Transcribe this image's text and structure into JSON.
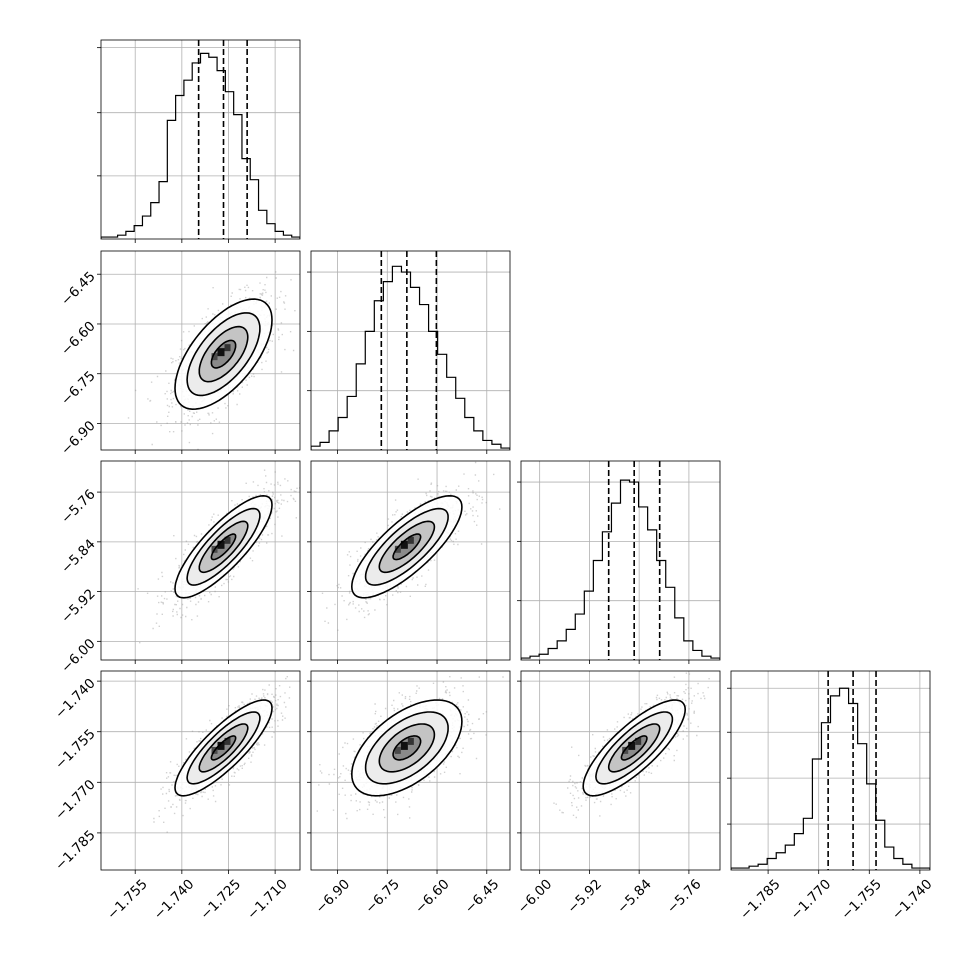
{
  "chart_data": {
    "type": "corner",
    "title": "",
    "parameters": [
      {
        "index": 0,
        "axis_label": "",
        "range": [
          -1.766,
          -1.702
        ],
        "ticks": [
          -1.755,
          -1.74,
          -1.725,
          -1.71
        ],
        "tick_labels": [
          "−1.755",
          "−1.740",
          "−1.725",
          "−1.710"
        ],
        "quantiles": {
          "q16": -1.7346,
          "q50": -1.7266,
          "q84": -1.719
        },
        "histogram": [
          0.01,
          0.01,
          0.02,
          0.04,
          0.07,
          0.12,
          0.19,
          0.3,
          0.62,
          0.75,
          0.83,
          0.92,
          0.97,
          0.95,
          0.88,
          0.77,
          0.65,
          0.42,
          0.31,
          0.15,
          0.08,
          0.04,
          0.02,
          0.01
        ],
        "hist_ticks": [
          0.33,
          0.66,
          1.0
        ]
      },
      {
        "index": 1,
        "axis_label": "",
        "range": [
          -6.98,
          -6.38
        ],
        "ticks": [
          -6.9,
          -6.75,
          -6.6,
          -6.45
        ],
        "tick_labels": [
          "−6.90",
          "−6.75",
          "−6.60",
          "−6.45"
        ],
        "quantiles": {
          "q16": -6.768,
          "q50": -6.691,
          "q84": -6.602
        },
        "histogram": [
          0.02,
          0.04,
          0.1,
          0.17,
          0.28,
          0.45,
          0.62,
          0.78,
          0.88,
          0.96,
          0.93,
          0.85,
          0.76,
          0.62,
          0.5,
          0.38,
          0.27,
          0.17,
          0.1,
          0.05,
          0.03,
          0.01
        ],
        "hist_ticks": [
          0.31,
          0.62,
          0.93
        ]
      },
      {
        "index": 2,
        "axis_label": "",
        "range": [
          -6.03,
          -5.71
        ],
        "ticks": [
          -6.0,
          -5.92,
          -5.84,
          -5.76
        ],
        "tick_labels": [
          "−6.00",
          "−5.92",
          "−5.84",
          "−5.76"
        ],
        "quantiles": {
          "q16": -5.889,
          "q50": -5.848,
          "q84": -5.807
        },
        "histogram": [
          0.01,
          0.02,
          0.03,
          0.06,
          0.1,
          0.16,
          0.24,
          0.36,
          0.52,
          0.67,
          0.82,
          0.94,
          0.93,
          0.8,
          0.68,
          0.52,
          0.38,
          0.22,
          0.1,
          0.05,
          0.02,
          0.01
        ],
        "hist_ticks": [
          0.31,
          0.62,
          0.93
        ]
      },
      {
        "index": 3,
        "axis_label": "",
        "range": [
          -1.796,
          -1.737
        ],
        "ticks": [
          -1.785,
          -1.77,
          -1.755,
          -1.74
        ],
        "tick_labels": [
          "−1.785",
          "−1.770",
          "−1.755",
          "−1.740"
        ],
        "quantiles": {
          "q16": -1.7672,
          "q50": -1.7598,
          "q84": -1.753
        },
        "histogram": [
          0.01,
          0.01,
          0.02,
          0.03,
          0.06,
          0.09,
          0.13,
          0.19,
          0.27,
          0.58,
          0.77,
          0.91,
          0.95,
          0.87,
          0.66,
          0.45,
          0.26,
          0.12,
          0.06,
          0.03,
          0.01,
          0.01
        ],
        "hist_ticks": [
          0.24,
          0.48,
          0.72,
          0.95
        ]
      }
    ],
    "correlations": [
      [
        1.0,
        0.62,
        0.82,
        0.83
      ],
      [
        0.62,
        1.0,
        0.78,
        0.55
      ],
      [
        0.82,
        0.78,
        1.0,
        0.8
      ],
      [
        0.83,
        0.55,
        0.8,
        1.0
      ]
    ],
    "contour_levels_sigma": [
      0.5,
      1.0,
      1.5,
      2.0
    ],
    "quantile_line_style": "dashed",
    "grid": true,
    "legend": "none"
  }
}
